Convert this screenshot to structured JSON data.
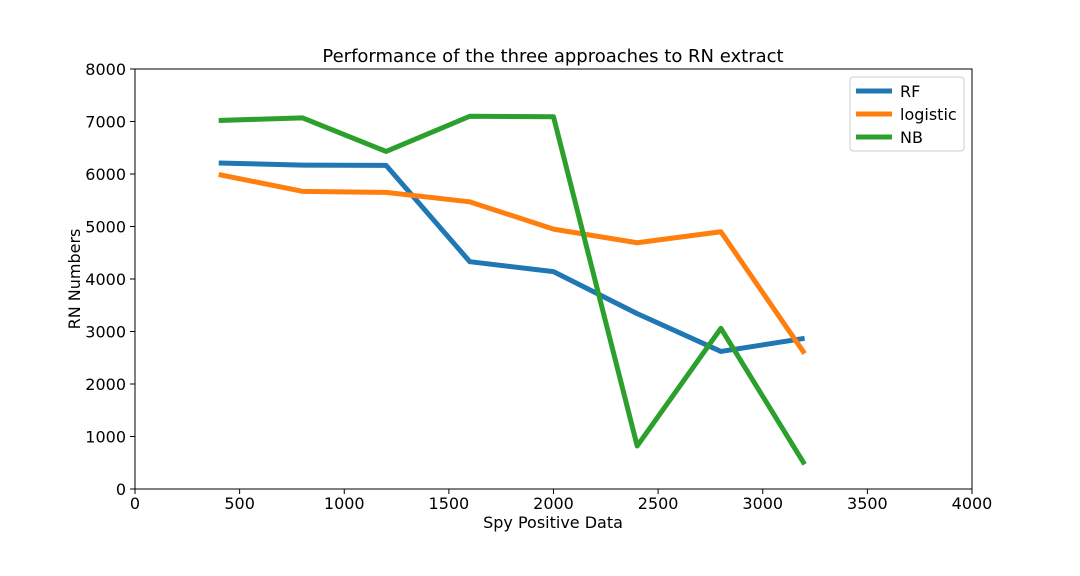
{
  "chart_data": {
    "type": "line",
    "title": "Performance of the three approaches to RN extract",
    "xlabel": "Spy Positive Data",
    "ylabel": "RN Numbers",
    "xlim": [
      0,
      4000
    ],
    "ylim": [
      0,
      8000
    ],
    "xticks": [
      0,
      500,
      1000,
      1500,
      2000,
      2500,
      3000,
      3500,
      4000
    ],
    "yticks": [
      0,
      1000,
      2000,
      3000,
      4000,
      5000,
      6000,
      7000,
      8000
    ],
    "grid": false,
    "legend_position": "top-right",
    "x": [
      400,
      800,
      1200,
      1600,
      2000,
      2400,
      2800,
      3200
    ],
    "series": [
      {
        "name": "RF",
        "color": "#1f77b4",
        "values": [
          6210,
          6170,
          6165,
          4330,
          4140,
          3340,
          2620,
          2870
        ]
      },
      {
        "name": "logistic",
        "color": "#ff7f0e",
        "values": [
          5990,
          5670,
          5650,
          5470,
          4950,
          4690,
          4900,
          2580
        ]
      },
      {
        "name": "NB",
        "color": "#2ca02c",
        "values": [
          7020,
          7070,
          6430,
          7100,
          7090,
          820,
          3060,
          470
        ]
      }
    ]
  }
}
